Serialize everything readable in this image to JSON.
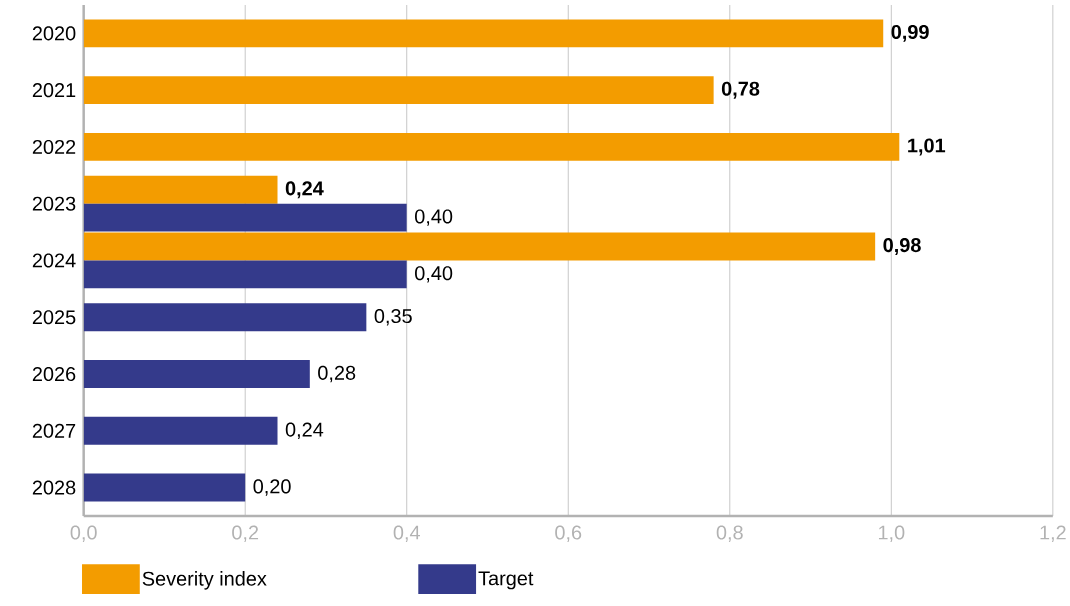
{
  "chart_data": {
    "type": "bar",
    "orientation": "horizontal",
    "categories": [
      "2020",
      "2021",
      "2022",
      "2023",
      "2024",
      "2025",
      "2026",
      "2027",
      "2028"
    ],
    "series": [
      {
        "name": "Severity index",
        "color": "#f39c00",
        "values": [
          0.99,
          0.78,
          1.01,
          0.24,
          0.98,
          null,
          null,
          null,
          null
        ],
        "value_labels": [
          "0,99",
          "0,78",
          "1,01",
          "0,24",
          "0,98",
          null,
          null,
          null,
          null
        ]
      },
      {
        "name": "Target",
        "color": "#343a8b",
        "values": [
          null,
          null,
          null,
          0.4,
          0.4,
          0.35,
          0.28,
          0.24,
          0.2
        ],
        "value_labels": [
          null,
          null,
          null,
          "0,40",
          "0,40",
          "0,35",
          "0,28",
          "0,24",
          "0,20"
        ]
      }
    ],
    "xlim": [
      0,
      1.2
    ],
    "xticks": [
      {
        "value": 0,
        "label": "0,0"
      },
      {
        "value": 0.2,
        "label": "0,2"
      },
      {
        "value": 0.4,
        "label": "0,4"
      },
      {
        "value": 0.6,
        "label": "0,6"
      },
      {
        "value": 0.8,
        "label": "0,8"
      },
      {
        "value": 1.0,
        "label": "1,0"
      },
      {
        "value": 1.2,
        "label": "1,2"
      }
    ],
    "grid": "x",
    "legend": "bottom"
  }
}
